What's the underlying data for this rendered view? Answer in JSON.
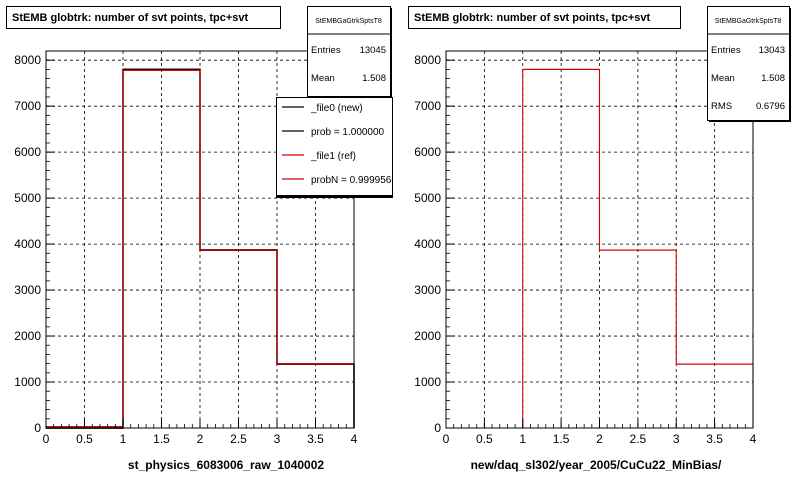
{
  "chart_data": [
    {
      "type": "histogram",
      "title": "StEMB globtrk: number of svt points, tpc+svt",
      "xlabel": "st_physics_6083006_raw_1040002",
      "xlim": [
        0,
        4
      ],
      "ylim": [
        0,
        8200
      ],
      "x_ticks": [
        "0",
        "0.5",
        "1",
        "1.5",
        "2",
        "2.5",
        "3",
        "3.5",
        "4"
      ],
      "y_ticks": [
        "0",
        "1000",
        "2000",
        "3000",
        "4000",
        "5000",
        "6000",
        "7000",
        "8000"
      ],
      "grid": true,
      "bins": [
        0,
        1,
        2,
        3,
        4
      ],
      "series": [
        {
          "name": "_file0 (new)",
          "color": "#000000",
          "values": [
            0,
            7800,
            3870,
            1390
          ]
        },
        {
          "name": "_file1 (ref)",
          "color": "#d40000",
          "values": [
            30,
            7780,
            3870,
            1390
          ]
        }
      ],
      "stats": {
        "name": "StEMBGaGtrkSptsT8",
        "rows": [
          {
            "label": "Entries",
            "value": "13045"
          },
          {
            "label": "Mean",
            "value": "1.508"
          }
        ]
      },
      "legend": {
        "placement": "top-right",
        "entries": [
          {
            "label": "_file0 (new)",
            "color": "#000000"
          },
          {
            "label": "prob = 1.000000",
            "color": "#000000"
          },
          {
            "label": "_file1 (ref)",
            "color": "#d40000"
          },
          {
            "label": "probN = 0.999956",
            "color": "#d40000"
          }
        ]
      }
    },
    {
      "type": "histogram",
      "title": "StEMB globtrk: number of svt points, tpc+svt",
      "xlabel": "new/daq_sl302/year_2005/CuCu22_MinBias/",
      "xlim": [
        0,
        4
      ],
      "ylim": [
        0,
        8200
      ],
      "x_ticks": [
        "0",
        "0.5",
        "1",
        "1.5",
        "2",
        "2.5",
        "3",
        "3.5",
        "4"
      ],
      "y_ticks": [
        "0",
        "1000",
        "2000",
        "3000",
        "4000",
        "5000",
        "6000",
        "7000",
        "8000"
      ],
      "grid": true,
      "bins": [
        0,
        1,
        2,
        3,
        4
      ],
      "series": [
        {
          "name": "",
          "color": "#d40000",
          "values": [
            0,
            7800,
            3870,
            1390
          ]
        }
      ],
      "stats": {
        "name": "StEMBGaGtrkSptsT8",
        "rows": [
          {
            "label": "Entries",
            "value": "13043"
          },
          {
            "label": "Mean",
            "value": "1.508"
          },
          {
            "label": "RMS",
            "value": "0.6796"
          }
        ]
      }
    }
  ]
}
